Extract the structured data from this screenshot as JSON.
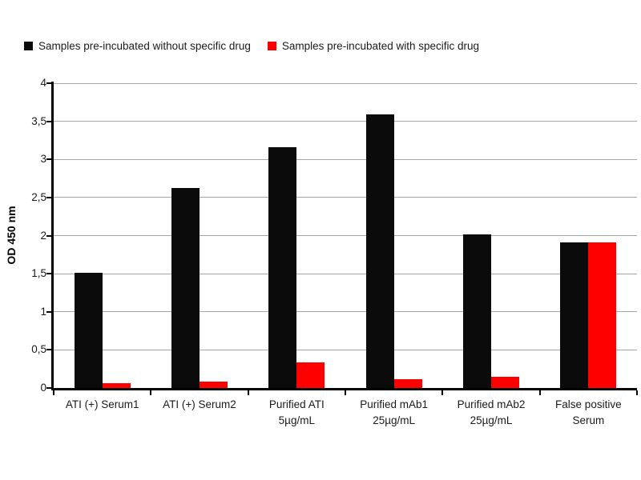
{
  "chart_data": {
    "type": "bar",
    "title": "",
    "ylabel": "OD 450 nm",
    "xlabel": "",
    "ylim": [
      0,
      4
    ],
    "ytick_step": 0.5,
    "ytick_labels": [
      "0",
      "0,5",
      "1",
      "1,5",
      "2",
      "2,5",
      "3",
      "3,5",
      "4"
    ],
    "decimal_separator": ",",
    "grid": true,
    "legend_position": "top-left",
    "categories": [
      "ATI (+) Serum1",
      "ATI (+) Serum2",
      "Purified ATI 5µg/mL",
      "Purified mAb1 25µg/mL",
      "Purified mAb2 25µg/mL",
      "False positive Serum"
    ],
    "category_lines": [
      [
        "ATI (+) Serum1"
      ],
      [
        "ATI (+) Serum2"
      ],
      [
        "Purified ATI",
        "5µg/mL"
      ],
      [
        "Purified mAb1",
        "25µg/mL"
      ],
      [
        "Purified mAb2",
        "25µg/mL"
      ],
      [
        "False positive",
        "Serum"
      ]
    ],
    "series": [
      {
        "name": "Samples pre-incubated without specific drug",
        "color": "#0b0b0b",
        "values": [
          1.51,
          2.62,
          3.16,
          3.59,
          2.02,
          1.91
        ]
      },
      {
        "name": "Samples pre-incubated with specific drug",
        "color": "#fe0000",
        "values": [
          0.06,
          0.08,
          0.34,
          0.12,
          0.15,
          1.91
        ]
      }
    ],
    "colors": {
      "background": "#ffffff",
      "gridline": "#a6a6a6",
      "axis": "#000000",
      "text": "#1a1a1a"
    }
  }
}
